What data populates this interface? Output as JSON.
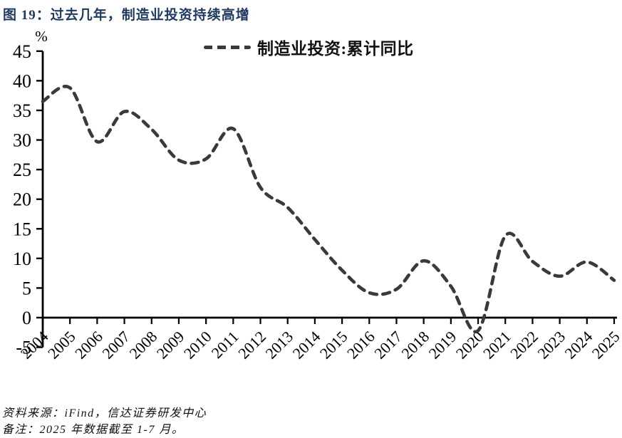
{
  "title": "图 19：过去几年，制造业投资持续高增",
  "legend": {
    "label": "制造业投资:累计同比"
  },
  "footer": {
    "source": "资料来源：iFind，信达证券研发中心",
    "note": "备注：2025 年数据截至 1-7 月。"
  },
  "chart_data": {
    "type": "line",
    "title": "图 19：过去几年，制造业投资持续高增",
    "x": [
      "2004",
      "2005",
      "2006",
      "2007",
      "2008",
      "2009",
      "2010",
      "2011",
      "2012",
      "2013",
      "2014",
      "2015",
      "2016",
      "2017",
      "2018",
      "2019",
      "2020",
      "2021",
      "2022",
      "2023",
      "2024",
      "2025"
    ],
    "series": [
      {
        "name": "制造业投资:累计同比",
        "style": "dashed",
        "color": "#3a3a3a",
        "values": [
          36.5,
          38.8,
          29.7,
          34.8,
          31.8,
          26.6,
          26.8,
          31.9,
          22.0,
          18.6,
          13.2,
          8.0,
          4.2,
          4.8,
          9.6,
          5.3,
          -2.2,
          13.8,
          9.5,
          7.0,
          9.4,
          6.3
        ]
      }
    ],
    "xlabel": "",
    "ylabel": "%",
    "ylim": [
      -5,
      45
    ],
    "y_ticks": [
      45,
      40,
      35,
      30,
      25,
      20,
      15,
      10,
      5,
      0,
      -5
    ],
    "grid": false,
    "legend_position": "top-center",
    "axis_color": "#000000"
  }
}
